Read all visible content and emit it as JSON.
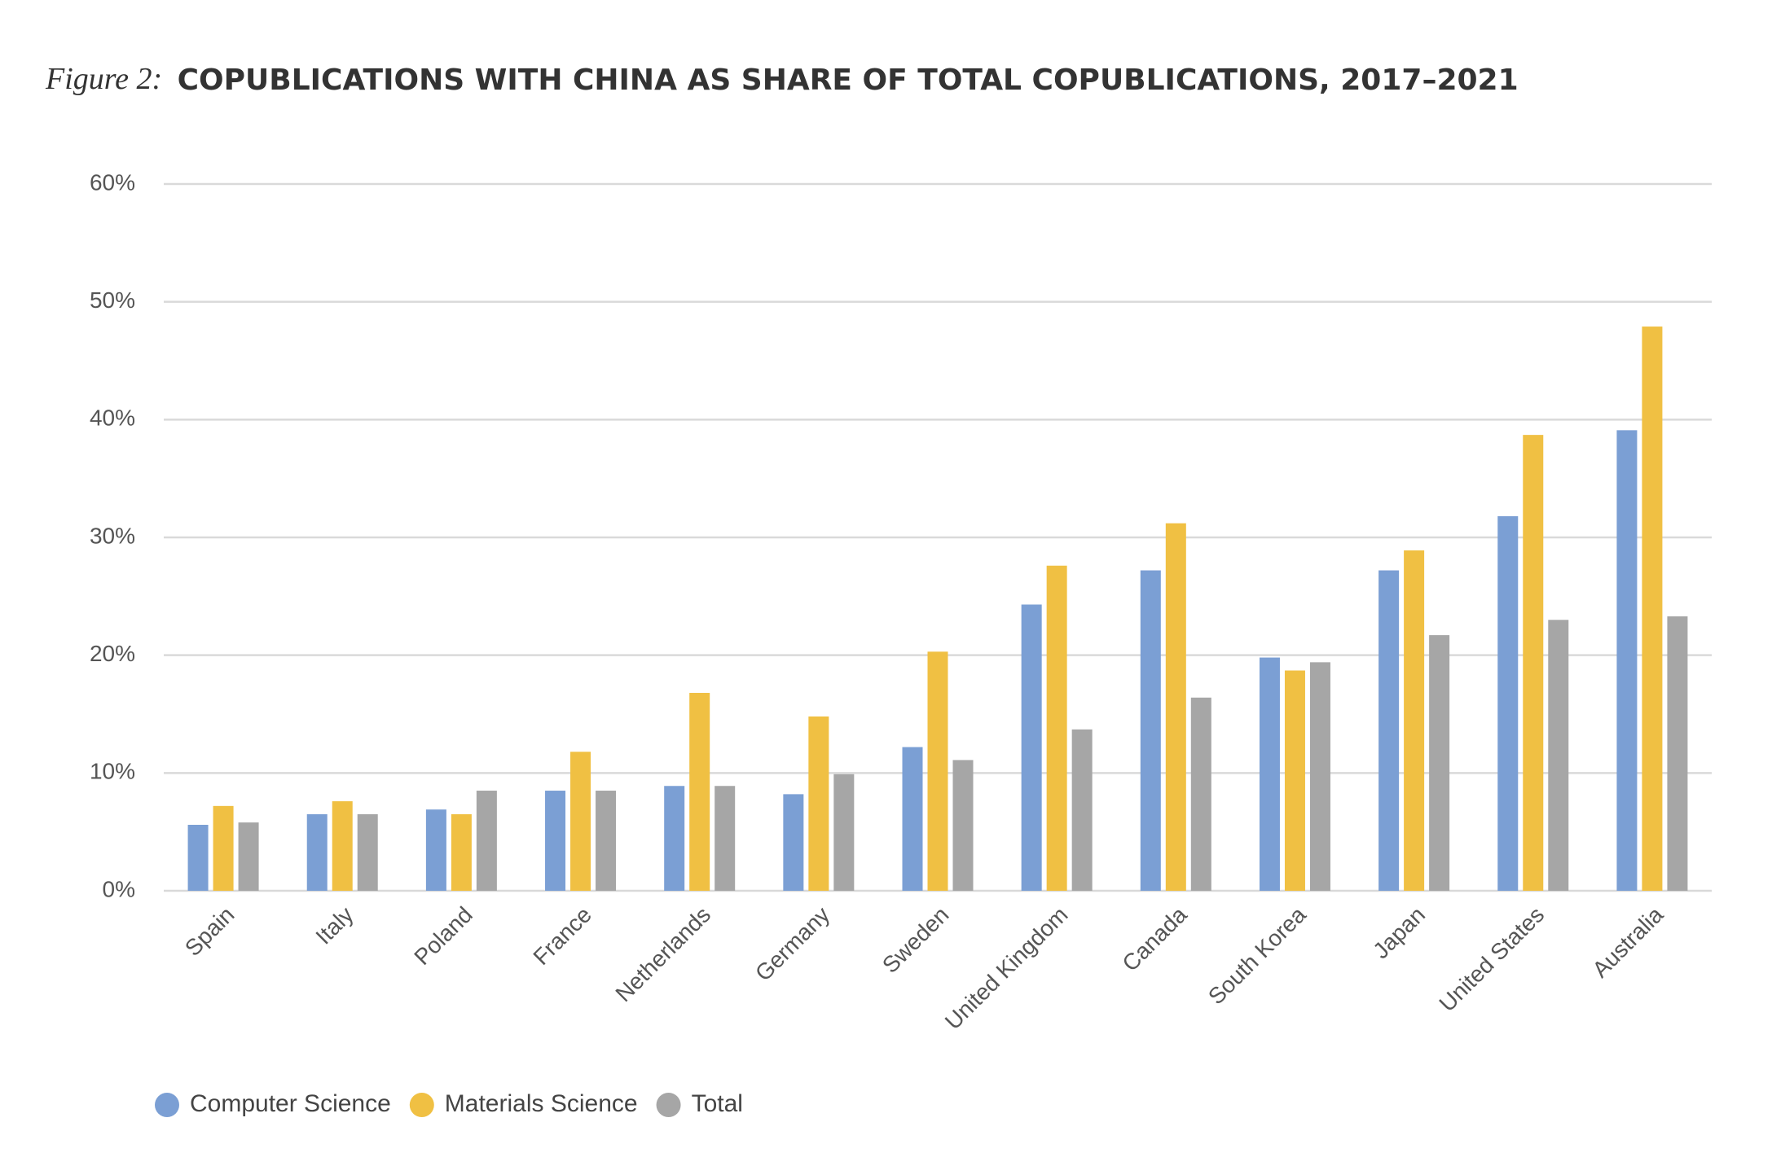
{
  "chart_data": {
    "type": "bar",
    "figure_label": "Figure 2:",
    "title": "COPUBLICATIONS WITH CHINA AS SHARE OF TOTAL COPUBLICATIONS, 2017–2021",
    "categories": [
      "Spain",
      "Italy",
      "Poland",
      "France",
      "Netherlands",
      "Germany",
      "Sweden",
      "United Kingdom",
      "Canada",
      "South Korea",
      "Japan",
      "United States",
      "Australia"
    ],
    "series": [
      {
        "name": "Computer Science",
        "color": "#7b9fd4",
        "values": [
          5.6,
          6.5,
          6.9,
          8.5,
          8.9,
          8.2,
          12.2,
          24.3,
          27.2,
          19.8,
          27.2,
          31.8,
          39.1
        ]
      },
      {
        "name": "Materials Science",
        "color": "#f0c043",
        "values": [
          7.2,
          7.6,
          6.5,
          11.8,
          16.8,
          14.8,
          20.3,
          27.6,
          31.2,
          18.7,
          28.9,
          38.7,
          47.9
        ]
      },
      {
        "name": "Total",
        "color": "#a6a6a6",
        "values": [
          5.8,
          6.5,
          8.5,
          8.5,
          8.9,
          9.9,
          11.1,
          13.7,
          16.4,
          19.4,
          21.7,
          23.0,
          23.3
        ]
      }
    ],
    "ylim": [
      0,
      60
    ],
    "yticks": [
      {
        "value": 0,
        "label": "0%"
      },
      {
        "value": 10,
        "label": "10%"
      },
      {
        "value": 20,
        "label": "20%"
      },
      {
        "value": 30,
        "label": "30%"
      },
      {
        "value": 40,
        "label": "40%"
      },
      {
        "value": 50,
        "label": "50%"
      },
      {
        "value": 60,
        "label": "60%"
      }
    ],
    "grid": true,
    "legend": "bottom-left"
  }
}
